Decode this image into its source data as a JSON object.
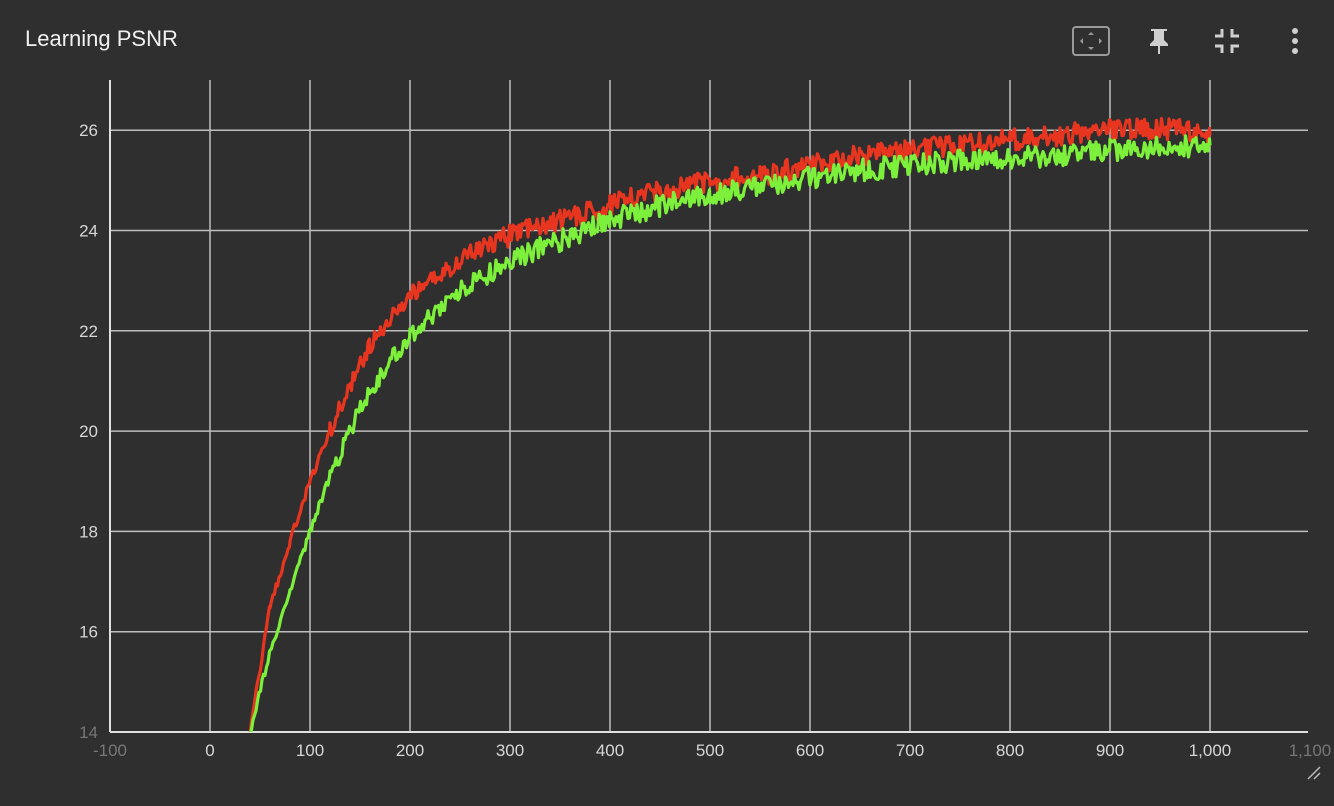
{
  "card": {
    "title": "Learning PSNR",
    "toolbar": [
      {
        "name": "fit-domain-icon"
      },
      {
        "name": "pin-icon"
      },
      {
        "name": "collapse-icon"
      },
      {
        "name": "more-vert-icon"
      }
    ]
  },
  "chart_data": {
    "type": "line",
    "title": "Learning PSNR",
    "xlabel": "",
    "ylabel": "",
    "xlim": [
      -100,
      1100
    ],
    "ylim": [
      14,
      27
    ],
    "x_ticks": [
      "-100",
      "0",
      "100",
      "200",
      "300",
      "400",
      "500",
      "600",
      "700",
      "800",
      "900",
      "1,000",
      "1,100"
    ],
    "x_tick_values": [
      -100,
      0,
      100,
      200,
      300,
      400,
      500,
      600,
      700,
      800,
      900,
      1000,
      1100
    ],
    "y_ticks": [
      "14",
      "16",
      "18",
      "20",
      "22",
      "24",
      "26"
    ],
    "y_tick_values": [
      14,
      16,
      18,
      20,
      22,
      24,
      26
    ],
    "grid": true,
    "series": [
      {
        "color": "#e8351f",
        "x": [
          40,
          60,
          80,
          100,
          120,
          140,
          160,
          180,
          200,
          250,
          300,
          350,
          400,
          450,
          500,
          550,
          600,
          650,
          700,
          750,
          800,
          850,
          900,
          950,
          1000
        ],
        "values": [
          14.0,
          16.5,
          17.8,
          19.0,
          20.0,
          20.9,
          21.7,
          22.2,
          22.7,
          23.4,
          23.9,
          24.2,
          24.5,
          24.8,
          25.0,
          25.1,
          25.3,
          25.5,
          25.6,
          25.7,
          25.8,
          25.9,
          26.0,
          26.05,
          25.9
        ]
      },
      {
        "color": "#7cf03a",
        "x": [
          40,
          60,
          80,
          100,
          120,
          140,
          160,
          180,
          200,
          250,
          300,
          350,
          400,
          450,
          500,
          550,
          600,
          650,
          700,
          750,
          800,
          850,
          900,
          950,
          1000
        ],
        "values": [
          14.0,
          15.6,
          16.8,
          18.0,
          19.1,
          20.0,
          20.8,
          21.4,
          21.9,
          22.8,
          23.4,
          23.8,
          24.2,
          24.5,
          24.7,
          24.9,
          25.05,
          25.2,
          25.3,
          25.4,
          25.45,
          25.5,
          25.6,
          25.65,
          25.7
        ]
      }
    ]
  }
}
